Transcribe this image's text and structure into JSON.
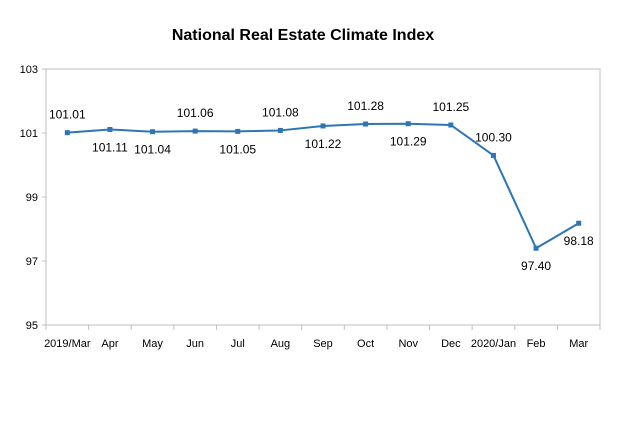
{
  "chart_data": {
    "type": "line",
    "title": "National Real Estate Climate Index",
    "xlabel": "",
    "ylabel": "",
    "categories": [
      "2019/Mar",
      "Apr",
      "May",
      "Jun",
      "Jul",
      "Aug",
      "Sep",
      "Oct",
      "Nov",
      "Dec",
      "2020/Jan",
      "Feb",
      "Mar"
    ],
    "series": [
      {
        "values": [
          101.01,
          101.11,
          101.04,
          101.06,
          101.05,
          101.08,
          101.22,
          101.28,
          101.29,
          101.25,
          100.3,
          97.4,
          98.18
        ],
        "labels": [
          "101.01",
          "101.11",
          "101.04",
          "101.06",
          "101.05",
          "101.08",
          "101.22",
          "101.28",
          "101.29",
          "101.25",
          "100.30",
          "97.40",
          "98.18"
        ],
        "label_positions": [
          "above",
          "below",
          "below",
          "above",
          "below",
          "above",
          "below",
          "above",
          "below",
          "above",
          "above",
          "below",
          "below"
        ],
        "color": "#2E75B6"
      }
    ],
    "ylim": [
      95,
      103
    ],
    "yticks": [
      "95",
      "97",
      "99",
      "101",
      "103"
    ],
    "grid": false,
    "legend": "none"
  }
}
